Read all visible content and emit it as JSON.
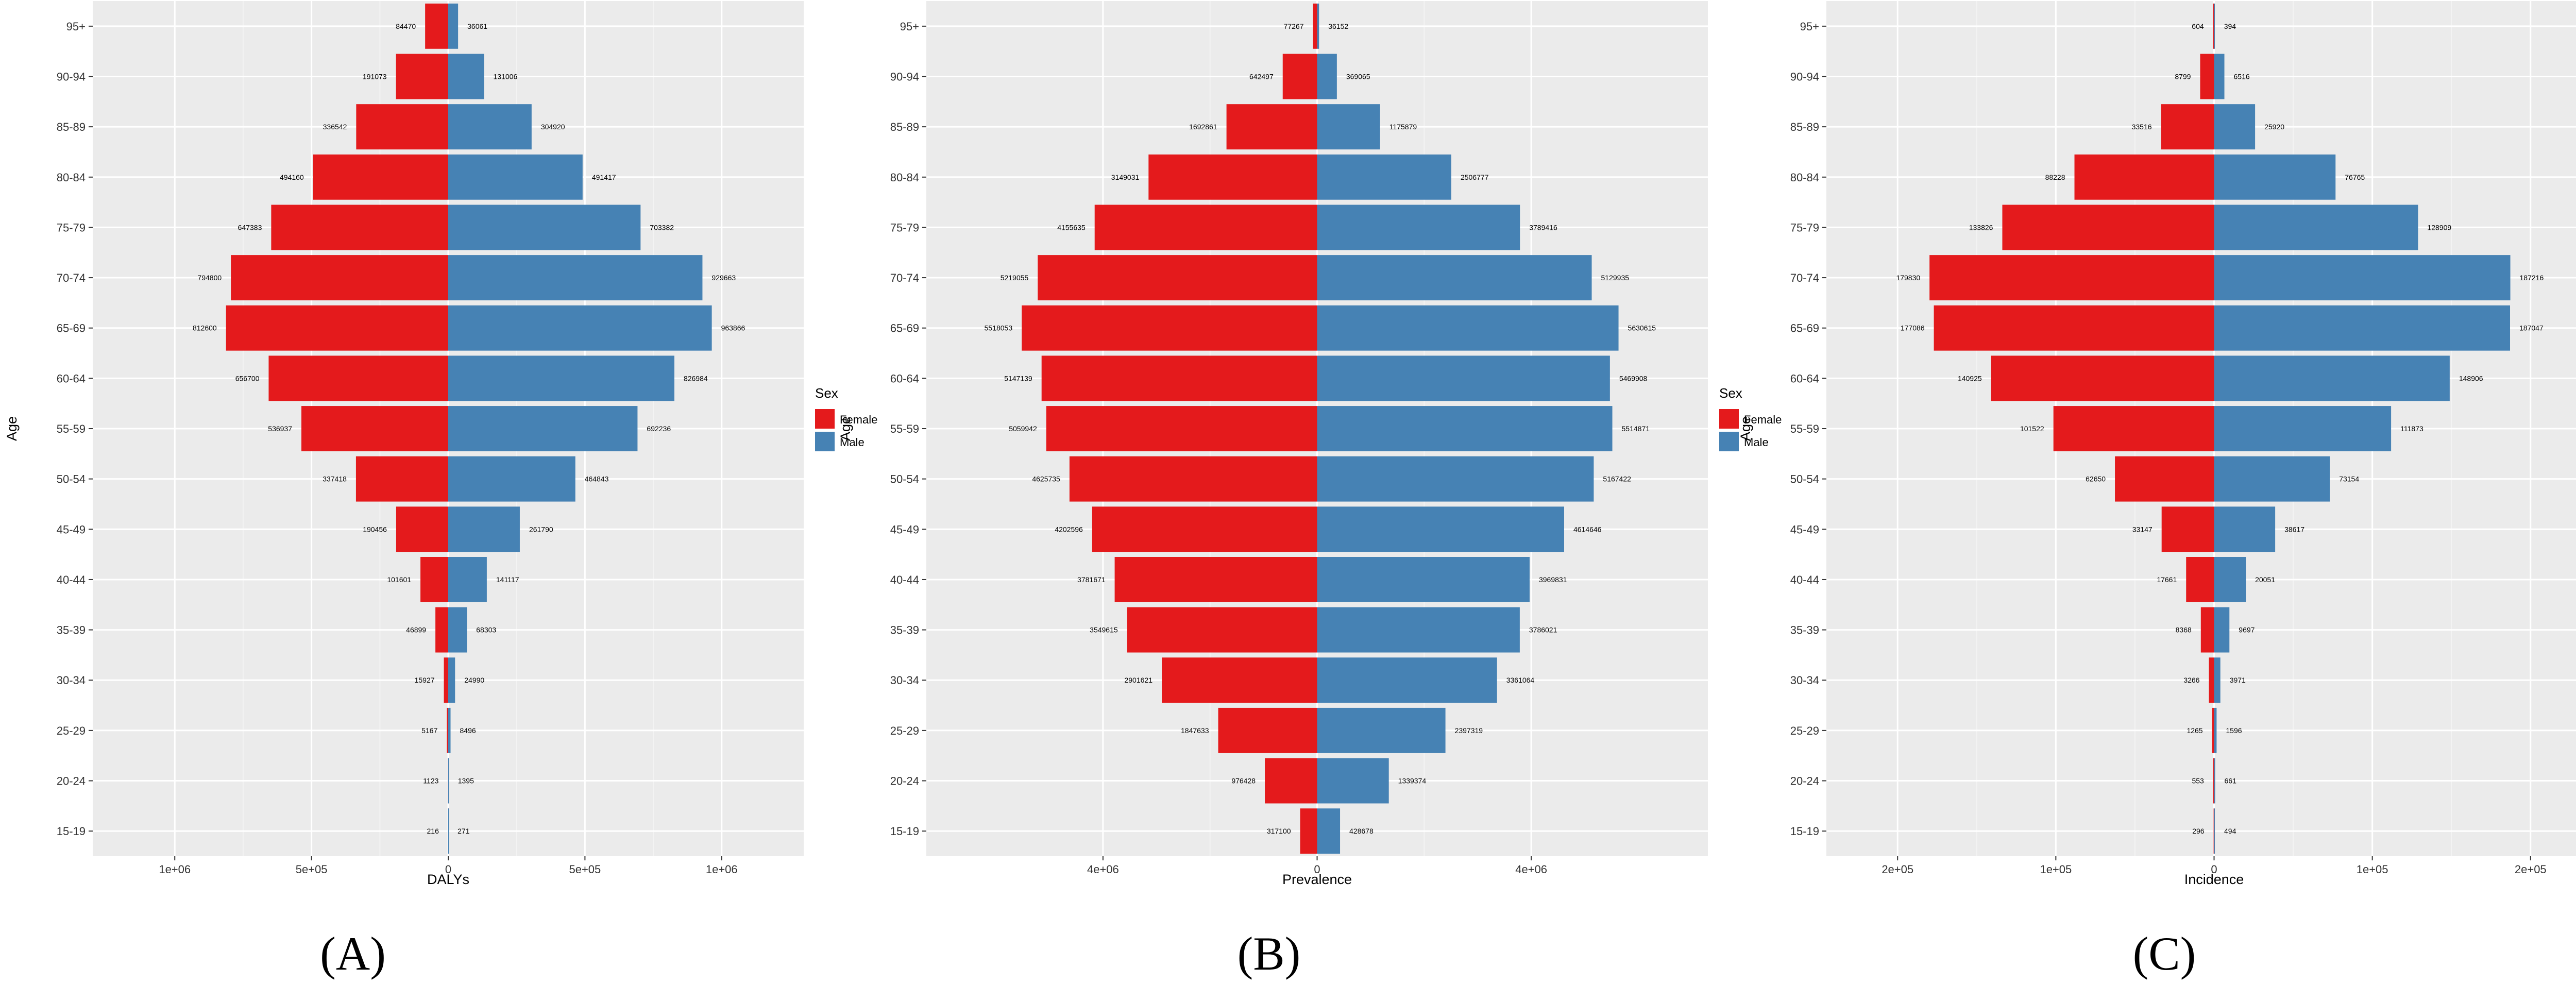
{
  "colors": {
    "panel_bg": "#ebebeb",
    "grid_major": "#ffffff",
    "grid_minor": "#f3f3f3",
    "female": "#e41a1c",
    "male": "#4682b4",
    "text": "#333333"
  },
  "chart_data": [
    {
      "type": "bar",
      "orientation": "horizontal",
      "layout": "population-pyramid",
      "panel_label": "(A)",
      "xlabel": "DALYs",
      "ylabel": "Age",
      "xlim": [
        -1300000,
        1300000
      ],
      "x_ticks": [
        {
          "value": -1000000,
          "label": "1e+06"
        },
        {
          "value": -500000,
          "label": "5e+05"
        },
        {
          "value": 0,
          "label": "0"
        },
        {
          "value": 500000,
          "label": "5e+05"
        },
        {
          "value": 1000000,
          "label": "1e+06"
        }
      ],
      "legend": {
        "title": "Sex",
        "position": "right",
        "entries": [
          "Female",
          "Male"
        ]
      },
      "categories": [
        "15-19",
        "20-24",
        "25-29",
        "30-34",
        "35-39",
        "40-44",
        "45-49",
        "50-54",
        "55-59",
        "60-64",
        "65-69",
        "70-74",
        "75-79",
        "80-84",
        "85-89",
        "90-94",
        "95+"
      ],
      "series": [
        {
          "name": "Female",
          "values": [
            216,
            1123,
            5167,
            15927,
            46899,
            101601,
            190456,
            337418,
            536937,
            656700,
            812600,
            794800,
            647383,
            494160,
            336542,
            191073,
            84470
          ]
        },
        {
          "name": "Male",
          "values": [
            271,
            1395,
            8496,
            24990,
            68303,
            141117,
            261790,
            464843,
            692236,
            826984,
            963866,
            929663,
            703382,
            491417,
            304920,
            131006,
            36061
          ]
        }
      ]
    },
    {
      "type": "bar",
      "orientation": "horizontal",
      "layout": "population-pyramid",
      "panel_label": "(B)",
      "xlabel": "Prevalence",
      "ylabel": "Age",
      "xlim": [
        -7300000,
        7300000
      ],
      "x_ticks": [
        {
          "value": -4000000,
          "label": "4e+06"
        },
        {
          "value": 0,
          "label": "0"
        },
        {
          "value": 4000000,
          "label": "4e+06"
        }
      ],
      "legend": {
        "title": "Sex",
        "position": "right",
        "entries": [
          "Female",
          "Male"
        ]
      },
      "categories": [
        "15-19",
        "20-24",
        "25-29",
        "30-34",
        "35-39",
        "40-44",
        "45-49",
        "50-54",
        "55-59",
        "60-64",
        "65-69",
        "70-74",
        "75-79",
        "80-84",
        "85-89",
        "90-94",
        "95+"
      ],
      "series": [
        {
          "name": "Female",
          "values": [
            317100,
            976428,
            1847633,
            2901621,
            3549615,
            3781671,
            4202596,
            4625735,
            5059942,
            5147139,
            5518053,
            5219055,
            4155635,
            3149031,
            1692861,
            642497,
            77267
          ]
        },
        {
          "name": "Male",
          "values": [
            428678,
            1339374,
            2397319,
            3361064,
            3786021,
            3969831,
            4614646,
            5167422,
            5514871,
            5469908,
            5630615,
            5129935,
            3789416,
            2506777,
            1175879,
            369065,
            36152
          ]
        }
      ]
    },
    {
      "type": "bar",
      "orientation": "horizontal",
      "layout": "population-pyramid",
      "panel_label": "(C)",
      "xlabel": "Incidence",
      "ylabel": "Age",
      "xlim": [
        -245000,
        245000
      ],
      "x_ticks": [
        {
          "value": -200000,
          "label": "2e+05"
        },
        {
          "value": -100000,
          "label": "1e+05"
        },
        {
          "value": 0,
          "label": "0"
        },
        {
          "value": 100000,
          "label": "1e+05"
        },
        {
          "value": 200000,
          "label": "2e+05"
        }
      ],
      "legend": {
        "title": "Sex",
        "position": "right",
        "entries": [
          "Female",
          "Male"
        ]
      },
      "categories": [
        "15-19",
        "20-24",
        "25-29",
        "30-34",
        "35-39",
        "40-44",
        "45-49",
        "50-54",
        "55-59",
        "60-64",
        "65-69",
        "70-74",
        "75-79",
        "80-84",
        "85-89",
        "90-94",
        "95+"
      ],
      "series": [
        {
          "name": "Female",
          "values": [
            296,
            553,
            1265,
            3266,
            8368,
            17661,
            33147,
            62650,
            101522,
            140925,
            177086,
            179830,
            133826,
            88228,
            33516,
            8799,
            604
          ]
        },
        {
          "name": "Male",
          "values": [
            494,
            661,
            1596,
            3971,
            9697,
            20051,
            38617,
            73154,
            111873,
            148906,
            187047,
            187216,
            128909,
            76765,
            25920,
            6516,
            394
          ]
        }
      ]
    }
  ]
}
